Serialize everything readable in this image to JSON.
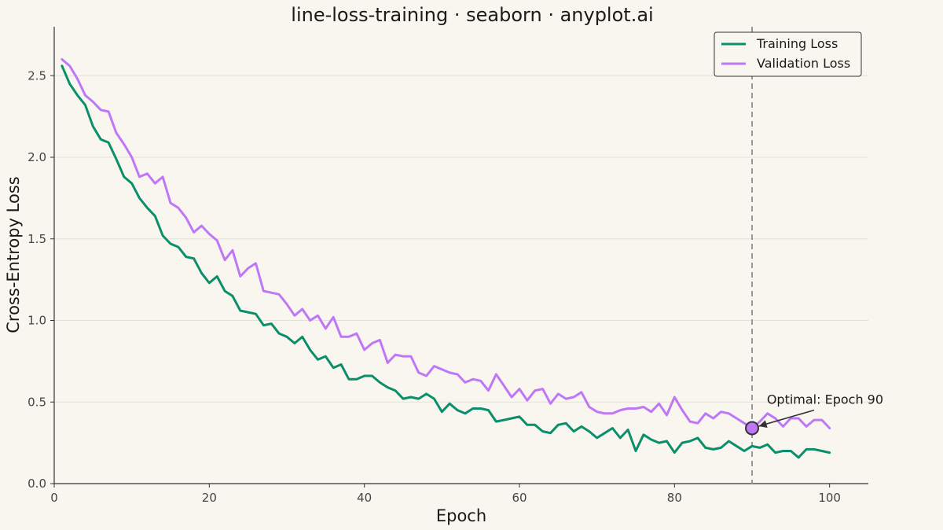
{
  "chart_data": {
    "type": "line",
    "title": "line-loss-training · seaborn · anyplot.ai",
    "xlabel": "Epoch",
    "ylabel": "Cross-Entropy Loss",
    "xlim": [
      0,
      105
    ],
    "ylim": [
      0,
      2.8
    ],
    "x_ticks": [
      0,
      20,
      40,
      60,
      80,
      100
    ],
    "x_tick_labels": [
      "0",
      "20",
      "40",
      "60",
      "80",
      "100"
    ],
    "y_ticks": [
      0,
      0.5,
      1.0,
      1.5,
      2.0,
      2.5
    ],
    "y_tick_labels": [
      "0.0",
      "0.5",
      "1.0",
      "1.5",
      "2.0",
      "2.5"
    ],
    "grid": "horizontal",
    "legend_position": "top-right",
    "series": [
      {
        "name": "Training Loss",
        "color": "#0a8f6a",
        "x": [
          1,
          2,
          3,
          4,
          5,
          6,
          7,
          8,
          9,
          10,
          11,
          12,
          13,
          14,
          15,
          16,
          17,
          18,
          19,
          20,
          21,
          22,
          23,
          24,
          25,
          26,
          27,
          28,
          29,
          30,
          31,
          32,
          33,
          34,
          35,
          36,
          37,
          38,
          39,
          40,
          41,
          42,
          43,
          44,
          45,
          46,
          47,
          48,
          49,
          50,
          51,
          52,
          53,
          54,
          55,
          56,
          57,
          58,
          59,
          60,
          61,
          62,
          63,
          64,
          65,
          66,
          67,
          68,
          69,
          70,
          71,
          72,
          73,
          74,
          75,
          76,
          77,
          78,
          79,
          80,
          81,
          82,
          83,
          84,
          85,
          86,
          87,
          88,
          89,
          90,
          91,
          92,
          93,
          94,
          95,
          96,
          97,
          98,
          99,
          100
        ],
        "values": [
          2.56,
          2.45,
          2.38,
          2.32,
          2.19,
          2.11,
          2.09,
          1.99,
          1.88,
          1.84,
          1.75,
          1.69,
          1.64,
          1.52,
          1.47,
          1.45,
          1.39,
          1.38,
          1.29,
          1.23,
          1.27,
          1.18,
          1.15,
          1.06,
          1.05,
          1.04,
          0.97,
          0.98,
          0.92,
          0.9,
          0.86,
          0.9,
          0.82,
          0.76,
          0.78,
          0.71,
          0.73,
          0.64,
          0.64,
          0.66,
          0.66,
          0.62,
          0.59,
          0.57,
          0.52,
          0.53,
          0.52,
          0.55,
          0.52,
          0.44,
          0.49,
          0.45,
          0.43,
          0.46,
          0.46,
          0.45,
          0.38,
          0.39,
          0.4,
          0.41,
          0.36,
          0.36,
          0.32,
          0.31,
          0.36,
          0.37,
          0.32,
          0.35,
          0.32,
          0.28,
          0.31,
          0.34,
          0.28,
          0.33,
          0.2,
          0.3,
          0.27,
          0.25,
          0.26,
          0.19,
          0.25,
          0.26,
          0.28,
          0.22,
          0.21,
          0.22,
          0.26,
          0.23,
          0.2,
          0.23,
          0.22,
          0.24,
          0.19,
          0.2,
          0.2,
          0.16,
          0.21,
          0.21,
          0.2,
          0.19
        ]
      },
      {
        "name": "Validation Loss",
        "color": "#bf77f6",
        "x": [
          1,
          2,
          3,
          4,
          5,
          6,
          7,
          8,
          9,
          10,
          11,
          12,
          13,
          14,
          15,
          16,
          17,
          18,
          19,
          20,
          21,
          22,
          23,
          24,
          25,
          26,
          27,
          28,
          29,
          30,
          31,
          32,
          33,
          34,
          35,
          36,
          37,
          38,
          39,
          40,
          41,
          42,
          43,
          44,
          45,
          46,
          47,
          48,
          49,
          50,
          51,
          52,
          53,
          54,
          55,
          56,
          57,
          58,
          59,
          60,
          61,
          62,
          63,
          64,
          65,
          66,
          67,
          68,
          69,
          70,
          71,
          72,
          73,
          74,
          75,
          76,
          77,
          78,
          79,
          80,
          81,
          82,
          83,
          84,
          85,
          86,
          87,
          88,
          89,
          90,
          91,
          92,
          93,
          94,
          95,
          96,
          97,
          98,
          99,
          100
        ],
        "values": [
          2.6,
          2.56,
          2.48,
          2.38,
          2.34,
          2.29,
          2.28,
          2.15,
          2.08,
          2.0,
          1.88,
          1.9,
          1.84,
          1.88,
          1.72,
          1.69,
          1.63,
          1.54,
          1.58,
          1.53,
          1.49,
          1.37,
          1.43,
          1.27,
          1.32,
          1.35,
          1.18,
          1.17,
          1.16,
          1.1,
          1.03,
          1.07,
          1.0,
          1.03,
          0.95,
          1.02,
          0.9,
          0.9,
          0.92,
          0.82,
          0.86,
          0.88,
          0.74,
          0.79,
          0.78,
          0.78,
          0.68,
          0.66,
          0.72,
          0.7,
          0.68,
          0.67,
          0.62,
          0.64,
          0.63,
          0.57,
          0.67,
          0.6,
          0.53,
          0.58,
          0.51,
          0.57,
          0.58,
          0.49,
          0.55,
          0.52,
          0.53,
          0.56,
          0.47,
          0.44,
          0.43,
          0.43,
          0.45,
          0.46,
          0.46,
          0.47,
          0.44,
          0.49,
          0.42,
          0.53,
          0.45,
          0.38,
          0.37,
          0.43,
          0.4,
          0.44,
          0.43,
          0.4,
          0.37,
          0.34,
          0.38,
          0.43,
          0.4,
          0.35,
          0.4,
          0.4,
          0.35,
          0.39,
          0.39,
          0.34
        ]
      }
    ],
    "reference_line": {
      "x": 90,
      "style": "dashed",
      "color": "#999999"
    },
    "annotation": {
      "text": "Optimal: Epoch 90",
      "point": {
        "x": 90,
        "y": 0.34
      },
      "text_anchor": {
        "x": 98,
        "y": 0.45
      },
      "marker_color": "#bf77f6"
    }
  }
}
